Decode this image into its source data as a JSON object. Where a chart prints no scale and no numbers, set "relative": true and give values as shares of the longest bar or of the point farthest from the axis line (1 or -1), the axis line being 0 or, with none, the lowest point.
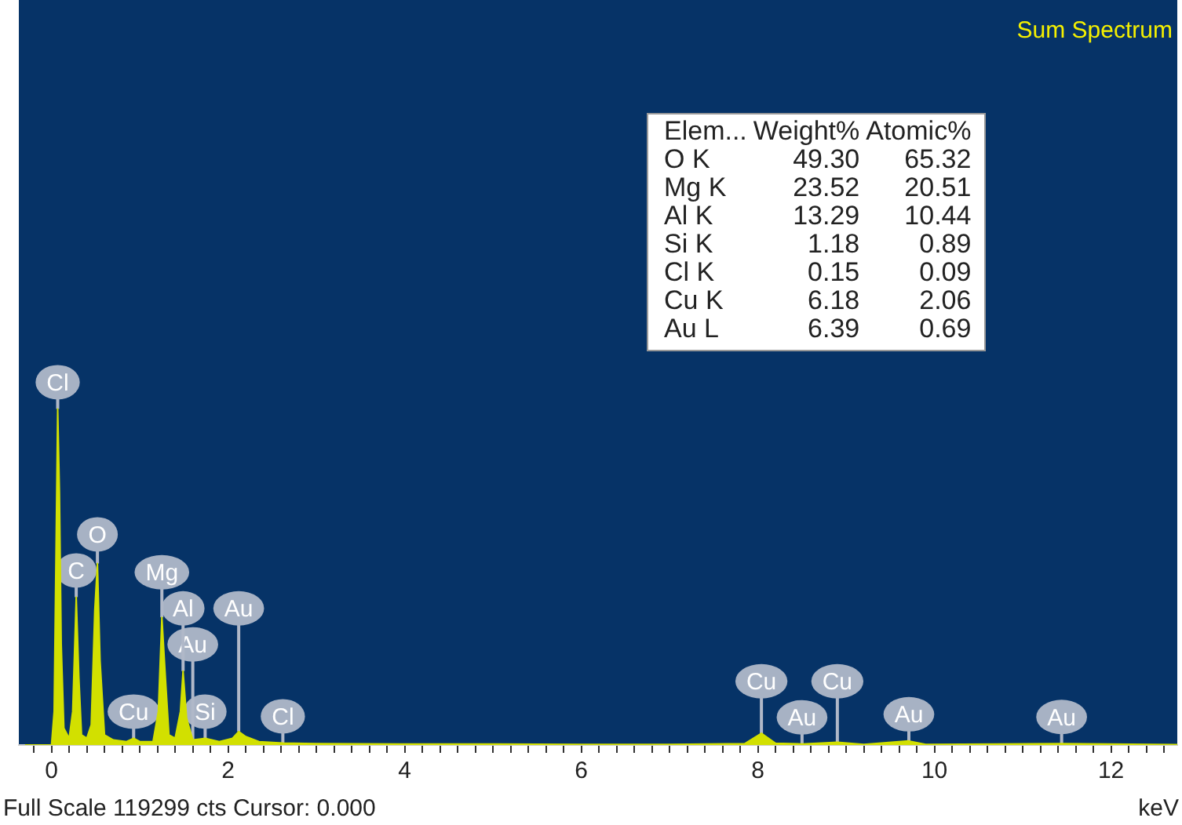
{
  "chart_data": {
    "type": "area",
    "title": "Sum Spectrum",
    "xlabel": "keV",
    "relative": true,
    "legend": false,
    "grid": false,
    "color": "#d2e000",
    "xlim": [
      -0.37,
      12.75
    ],
    "xticks": [
      {
        "value": -0.2,
        "label": null
      },
      0,
      {
        "value": 0.2,
        "label": null
      },
      {
        "value": 0.4,
        "label": null
      },
      {
        "value": 0.6,
        "label": null
      },
      {
        "value": 0.8,
        "label": null
      },
      {
        "value": 1,
        "label": null
      },
      {
        "value": 1.2,
        "label": null
      },
      {
        "value": 1.4,
        "label": null
      },
      {
        "value": 1.6,
        "label": null
      },
      {
        "value": 1.8,
        "label": null
      },
      2,
      {
        "value": 2.2,
        "label": null
      },
      {
        "value": 2.4,
        "label": null
      },
      {
        "value": 2.6,
        "label": null
      },
      {
        "value": 2.8,
        "label": null
      },
      {
        "value": 3,
        "label": null
      },
      {
        "value": 3.2,
        "label": null
      },
      {
        "value": 3.4,
        "label": null
      },
      {
        "value": 3.6,
        "label": null
      },
      {
        "value": 3.8,
        "label": null
      },
      4,
      {
        "value": 4.2,
        "label": null
      },
      {
        "value": 4.4,
        "label": null
      },
      {
        "value": 4.6,
        "label": null
      },
      {
        "value": 4.8,
        "label": null
      },
      {
        "value": 5,
        "label": null
      },
      {
        "value": 5.2,
        "label": null
      },
      {
        "value": 5.4,
        "label": null
      },
      {
        "value": 5.6,
        "label": null
      },
      {
        "value": 5.8,
        "label": null
      },
      6,
      {
        "value": 6.2,
        "label": null
      },
      {
        "value": 6.4,
        "label": null
      },
      {
        "value": 6.6,
        "label": null
      },
      {
        "value": 6.8,
        "label": null
      },
      {
        "value": 7,
        "label": null
      },
      {
        "value": 7.2,
        "label": null
      },
      {
        "value": 7.4,
        "label": null
      },
      {
        "value": 7.6,
        "label": null
      },
      {
        "value": 7.8,
        "label": null
      },
      8,
      {
        "value": 8.2,
        "label": null
      },
      {
        "value": 8.4,
        "label": null
      },
      {
        "value": 8.6,
        "label": null
      },
      {
        "value": 8.8,
        "label": null
      },
      {
        "value": 9,
        "label": null
      },
      {
        "value": 9.2,
        "label": null
      },
      {
        "value": 9.4,
        "label": null
      },
      {
        "value": 9.6,
        "label": null
      },
      {
        "value": 9.8,
        "label": null
      },
      10,
      {
        "value": 10.2,
        "label": null
      },
      {
        "value": 10.4,
        "label": null
      },
      {
        "value": 10.6,
        "label": null
      },
      {
        "value": 10.8,
        "label": null
      },
      {
        "value": 11,
        "label": null
      },
      {
        "value": 11.2,
        "label": null
      },
      {
        "value": 11.4,
        "label": null
      },
      {
        "value": 11.6,
        "label": null
      },
      {
        "value": 11.8,
        "label": null
      },
      12,
      {
        "value": 12.2,
        "label": null
      },
      {
        "value": 12.4,
        "label": null
      },
      {
        "value": 12.6,
        "label": null
      }
    ],
    "x": [
      -0.3,
      0,
      0.03,
      0.05,
      0.07,
      0.09,
      0.11,
      0.14,
      0.2,
      0.24,
      0.28,
      0.31,
      0.34,
      0.4,
      0.45,
      0.49,
      0.52,
      0.55,
      0.6,
      0.7,
      0.85,
      0.93,
      1.0,
      1.15,
      1.21,
      1.25,
      1.29,
      1.33,
      1.4,
      1.46,
      1.49,
      1.53,
      1.6,
      1.74,
      1.9,
      2.05,
      2.12,
      2.2,
      2.35,
      2.62,
      3,
      4,
      5,
      6,
      7,
      7.85,
      8.04,
      8.2,
      8.5,
      8.9,
      9.2,
      9.71,
      9.9,
      11.44,
      12.75
    ],
    "values": [
      0,
      0,
      0.1,
      0.55,
      1,
      0.75,
      0.3,
      0.05,
      0.02,
      0.1,
      0.44,
      0.2,
      0.03,
      0.02,
      0.06,
      0.4,
      0.54,
      0.25,
      0.03,
      0.015,
      0.01,
      0.02,
      0.01,
      0.01,
      0.1,
      0.38,
      0.2,
      0.03,
      0.02,
      0.1,
      0.22,
      0.08,
      0.015,
      0.02,
      0.01,
      0.02,
      0.04,
      0.025,
      0.01,
      0.006,
      0.004,
      0.003,
      0.003,
      0.002,
      0.002,
      0.004,
      0.035,
      0.005,
      0.003,
      0.008,
      0.002,
      0.012,
      0.002,
      0.004,
      0.001
    ],
    "annotations": [
      "Full Scale 119299 cts Cursor: 0.000",
      "Elem...\tWeight%\tAtomic%",
      "O K\t49.30\t65.32",
      "Mg K\t23.52\t20.51",
      "Al K\t13.29\t10.44",
      "Si K\t1.18\t0.89",
      "Cl K\t0.15\t0.09",
      "Cu K\t6.18\t2.06",
      "Au L\t6.39\t0.69",
      {
        "text": "Cl",
        "x": 0.07,
        "y": 1
      },
      {
        "text": "C",
        "x": 0.28,
        "y": 0.44
      },
      {
        "text": "O",
        "x": 0.52,
        "y": 0.54
      },
      {
        "text": "Cu",
        "x": 0.93,
        "y": 0.02
      },
      {
        "text": "Si",
        "x": 1.74,
        "y": 0.02
      },
      {
        "text": "Cl",
        "x": 2.62,
        "y": 0.006
      },
      {
        "text": "Au",
        "x": 1.6,
        "y": 0.015
      },
      {
        "text": "Al",
        "x": 1.49,
        "y": 0.22
      },
      {
        "text": "Mg",
        "x": 1.25,
        "y": 0.38
      },
      {
        "text": "Au",
        "x": 2.12,
        "y": 0.04
      },
      {
        "text": "Au",
        "x": 8.5,
        "y": 0.003
      },
      {
        "text": "Cu",
        "x": 8.04,
        "y": 0.035
      },
      {
        "text": "Cu",
        "x": 8.9,
        "y": 0.008
      },
      {
        "text": "Au",
        "x": 9.71,
        "y": 0.012
      },
      {
        "text": "Au",
        "x": 11.44,
        "y": 0.004
      }
    ]
  }
}
